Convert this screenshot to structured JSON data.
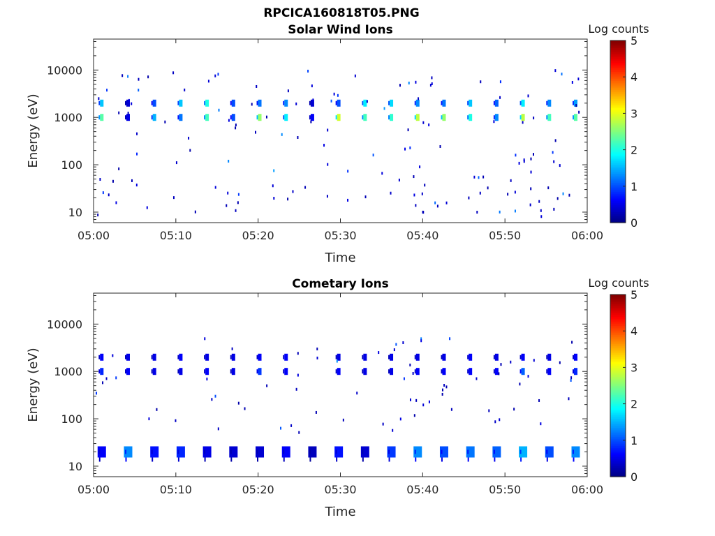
{
  "figure": {
    "title": "RPCICA160818T05.PNG"
  },
  "colormap": "jet",
  "chart_data": [
    {
      "type": "heatmap",
      "title": "Solar Wind Ions",
      "xlabel": "Time",
      "ylabel": "Energy (eV)",
      "y_scale": "log",
      "ylim": [
        6,
        45000
      ],
      "x_range": [
        "05:00",
        "06:00"
      ],
      "x_ticks": [
        "05:00",
        "05:10",
        "05:20",
        "05:30",
        "05:40",
        "05:50",
        "06:00"
      ],
      "y_ticks": [
        {
          "value": 10,
          "label": "10"
        },
        {
          "value": 100,
          "label": "100"
        },
        {
          "value": 1000,
          "label": "1000"
        },
        {
          "value": 10000,
          "label": "10000"
        }
      ],
      "colorbar": {
        "label": "Log counts",
        "min": 0,
        "max": 5,
        "ticks": [
          "0",
          "1",
          "2",
          "3",
          "4",
          "5"
        ]
      },
      "sweep_times_min": [
        1.0,
        4.2,
        7.4,
        10.6,
        13.8,
        17.0,
        20.2,
        23.4,
        26.6,
        29.8,
        33.0,
        36.2,
        39.4,
        42.6,
        45.8,
        49.0,
        52.2,
        55.4,
        58.6
      ],
      "bands": [
        {
          "energy_ev": 1000,
          "log_counts": [
            2.3,
            0.5,
            1.5,
            1.2,
            2.2,
            1.0,
            2.6,
            1.8,
            0.6,
            2.9,
            2.2,
            2.1,
            2.8,
            2.6,
            2.0,
            1.3,
            2.8,
            2.2,
            2.3
          ]
        },
        {
          "energy_ev": 2000,
          "log_counts": [
            1.6,
            0.4,
            1.0,
            1.6,
            2.0,
            1.0,
            1.2,
            1.3,
            0.4,
            1.0,
            1.8,
            1.7,
            1.3,
            1.2,
            1.6,
            1.1,
            1.8,
            1.3,
            1.4
          ]
        }
      ]
    },
    {
      "type": "heatmap",
      "title": "Cometary Ions",
      "xlabel": "Time",
      "ylabel": "Energy (eV)",
      "y_scale": "log",
      "ylim": [
        6,
        45000
      ],
      "x_range": [
        "05:00",
        "06:00"
      ],
      "x_ticks": [
        "05:00",
        "05:10",
        "05:20",
        "05:30",
        "05:40",
        "05:50",
        "06:00"
      ],
      "y_ticks": [
        {
          "value": 10,
          "label": "10"
        },
        {
          "value": 100,
          "label": "100"
        },
        {
          "value": 1000,
          "label": "1000"
        },
        {
          "value": 10000,
          "label": "10000"
        }
      ],
      "colorbar": {
        "label": "Log counts",
        "min": 0,
        "max": 5,
        "ticks": [
          "0",
          "1",
          "2",
          "3",
          "4",
          "5"
        ]
      },
      "sweep_times_min": [
        1.0,
        4.2,
        7.4,
        10.6,
        13.8,
        17.0,
        20.2,
        23.4,
        26.6,
        29.8,
        33.0,
        36.2,
        39.4,
        42.6,
        45.8,
        49.0,
        52.2,
        55.4,
        58.6
      ],
      "bands": [
        {
          "energy_ev": 20,
          "log_counts": [
            0.6,
            1.3,
            0.7,
            0.8,
            0.5,
            0.4,
            0.4,
            0.6,
            0.3,
            0.7,
            0.4,
            0.9,
            1.3,
            1.0,
            1.2,
            1.1,
            1.5,
            1.0,
            1.3
          ]
        },
        {
          "energy_ev": 1000,
          "log_counts": [
            0.8,
            0.6,
            0.5,
            0.5,
            0.6,
            0.5,
            0.9,
            0.6,
            0.0,
            0.6,
            0.5,
            0.5,
            0.6,
            0.6,
            0.6,
            0.6,
            1.1,
            0.6,
            0.8
          ]
        },
        {
          "energy_ev": 2000,
          "log_counts": [
            0.6,
            0.5,
            0.5,
            0.6,
            0.5,
            0.5,
            0.6,
            0.6,
            0.0,
            0.5,
            0.5,
            0.5,
            0.5,
            0.5,
            0.6,
            0.5,
            0.6,
            0.5,
            0.6
          ]
        }
      ]
    }
  ]
}
